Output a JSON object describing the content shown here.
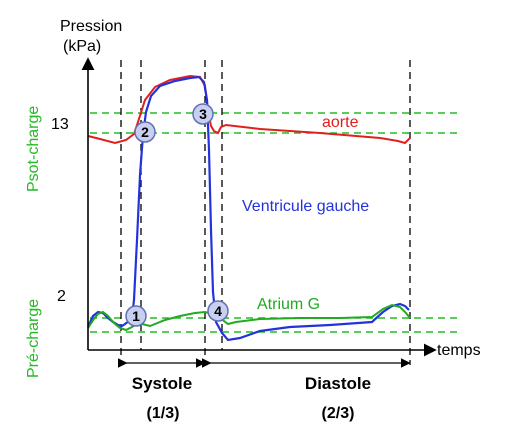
{
  "axes": {
    "y_title_line1": "Pression",
    "y_title_line2": "(kPa)",
    "x_title": "temps",
    "y_tick_high": "13",
    "y_tick_low": "2"
  },
  "side_labels": {
    "upper": "Psot-charge",
    "lower": "Pré-charge"
  },
  "curves": {
    "aorte": {
      "label": "aorte",
      "color": "#e02020"
    },
    "ventricule": {
      "label": "Ventricule gauche",
      "color": "#2233dd"
    },
    "atrium": {
      "label": "Atrium G",
      "color": "#22aa22"
    }
  },
  "markers": [
    "1",
    "2",
    "3",
    "4"
  ],
  "phases": {
    "systole": {
      "label": "Systole",
      "fraction": "(1/3)"
    },
    "diastole": {
      "label": "Diastole",
      "fraction": "(2/3)"
    }
  },
  "colors": {
    "reference_line": "#22bb22",
    "axis": "#000000",
    "marker_fill": "#c8cff0",
    "marker_stroke": "#6070b0"
  }
}
